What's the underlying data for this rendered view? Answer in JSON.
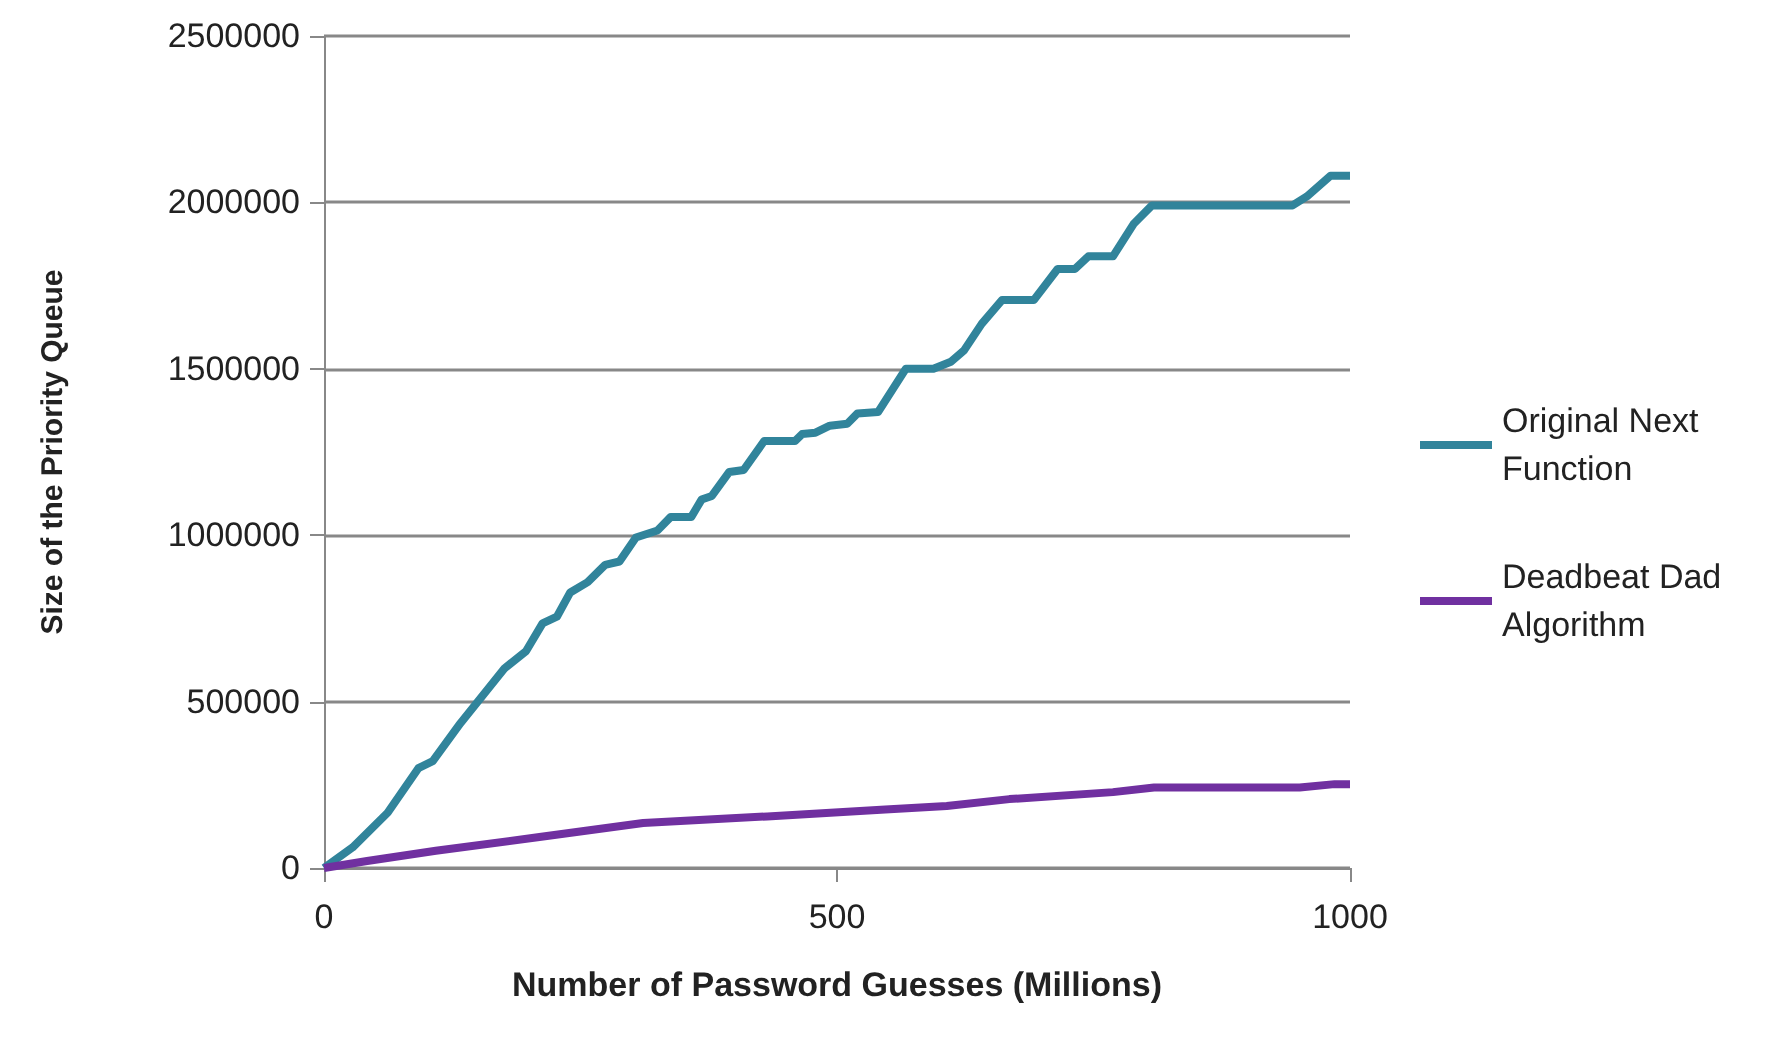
{
  "chart_data": {
    "type": "line",
    "xlabel": "Number of Password Guesses (Millions)",
    "ylabel": "Size of the Priority Queue",
    "xlim": [
      0,
      1000
    ],
    "xticks": [
      0,
      500,
      1000
    ],
    "ylim": [
      0,
      2500000
    ],
    "yticks": [
      0,
      500000,
      1000000,
      1500000,
      2000000,
      2500000
    ],
    "grid": "y",
    "legend": "right",
    "marker": "none",
    "line_style": "solid",
    "series": [
      {
        "name": "Original Next Function",
        "color": "#31849b",
        "x": [
          0,
          28,
          62,
          92,
          106,
          133,
          176,
          197,
          213,
          227,
          240,
          257,
          274,
          288,
          304,
          325,
          338,
          358,
          368,
          378,
          395,
          409,
          429,
          459,
          466,
          479,
          493,
          510,
          520,
          540,
          567,
          594,
          611,
          624,
          641,
          661,
          692,
          715,
          732,
          745,
          769,
          789,
          807,
          944,
          958,
          981,
          1000
        ],
        "values": [
          0,
          62000,
          166000,
          300000,
          321000,
          435000,
          600000,
          652000,
          735000,
          755000,
          828000,
          859000,
          911000,
          921000,
          993000,
          1014000,
          1055000,
          1055000,
          1107000,
          1118000,
          1190000,
          1196000,
          1283000,
          1283000,
          1304000,
          1308000,
          1329000,
          1335000,
          1366000,
          1370000,
          1500000,
          1500000,
          1521000,
          1556000,
          1635000,
          1707000,
          1707000,
          1800000,
          1800000,
          1838000,
          1838000,
          1935000,
          1991000,
          1991000,
          2018000,
          2080000,
          2080000
        ]
      },
      {
        "name": "Deadbeat Dad Algorithm",
        "color": "#7030a0",
        "x": [
          0,
          42,
          109,
          210,
          311,
          432,
          547,
          607,
          668,
          769,
          809,
          951,
          985,
          1000
        ],
        "values": [
          0,
          21000,
          52000,
          93000,
          135000,
          155000,
          176000,
          186000,
          207000,
          228000,
          242000,
          242000,
          252000,
          252000
        ]
      }
    ]
  }
}
